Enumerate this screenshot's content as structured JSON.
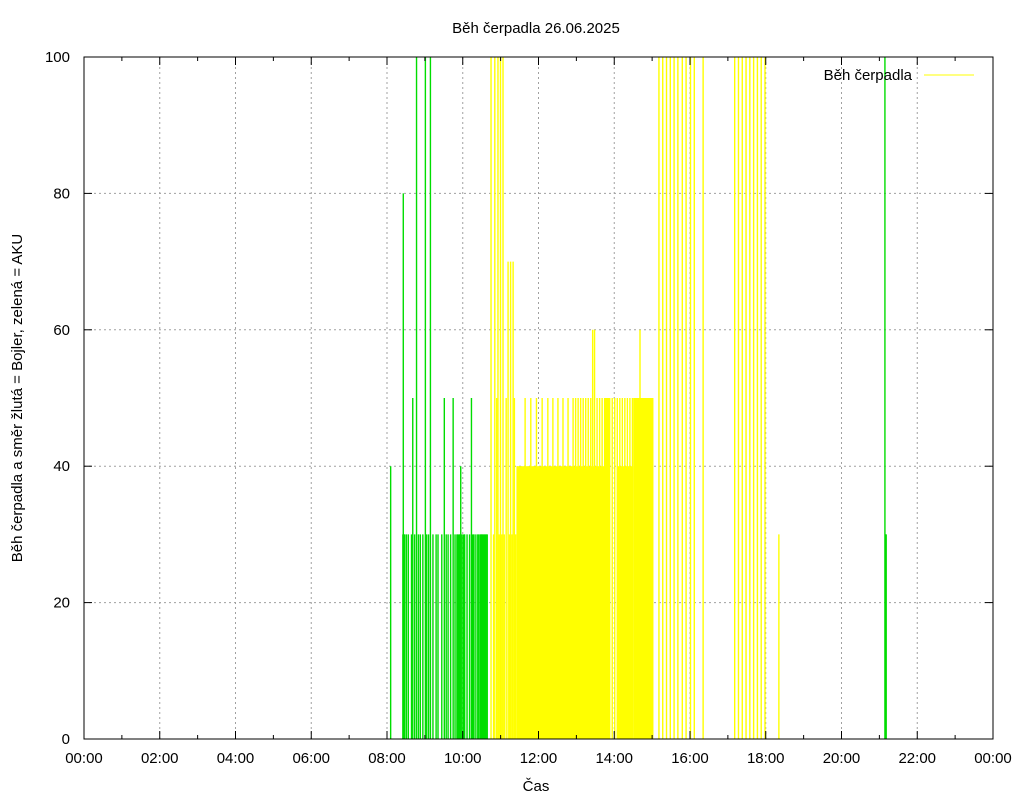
{
  "chart_data": {
    "type": "bar",
    "title": "Běh čerpadla 26.06.2025",
    "xlabel": "Čas",
    "ylabel": "Běh čerpadla a směr žlutá = Bojler, zelená = AKU",
    "xlim": [
      "00:00",
      "24:00"
    ],
    "ylim": [
      0,
      100
    ],
    "x_ticks": [
      "00:00",
      "02:00",
      "04:00",
      "06:00",
      "08:00",
      "10:00",
      "12:00",
      "14:00",
      "16:00",
      "18:00",
      "20:00",
      "22:00",
      "00:00"
    ],
    "y_ticks": [
      0,
      20,
      40,
      60,
      80,
      100
    ],
    "grid": true,
    "legend": {
      "position": "top-right",
      "entries": [
        "Běh čerpadla"
      ]
    },
    "colors": {
      "bojler": "#ffff00",
      "aku": "#00dd00"
    },
    "series": [
      {
        "color": "#00dd00",
        "impulses": [
          [
            "08:05",
            40
          ],
          [
            "08:12",
            0
          ],
          [
            "08:25",
            80
          ],
          [
            "08:27",
            30
          ],
          [
            "08:30",
            30
          ],
          [
            "08:33",
            30
          ],
          [
            "08:38",
            30
          ],
          [
            "08:40",
            50
          ],
          [
            "08:43",
            30
          ],
          [
            "08:46",
            100
          ],
          [
            "08:49",
            30
          ],
          [
            "08:52",
            30
          ],
          [
            "08:56",
            30
          ],
          [
            "09:00",
            100
          ],
          [
            "09:02",
            30
          ],
          [
            "09:05",
            30
          ],
          [
            "09:08",
            100
          ],
          [
            "09:12",
            30
          ],
          [
            "09:17",
            30
          ],
          [
            "09:20",
            30
          ],
          [
            "09:26",
            30
          ],
          [
            "09:30",
            50
          ],
          [
            "09:33",
            30
          ],
          [
            "09:36",
            30
          ],
          [
            "09:40",
            30
          ],
          [
            "09:44",
            50
          ],
          [
            "09:47",
            30
          ],
          [
            "09:50",
            30
          ],
          [
            "09:54",
            30
          ],
          [
            "09:56",
            40
          ],
          [
            "09:58",
            30
          ],
          [
            "10:02",
            30
          ],
          [
            "10:06",
            30
          ],
          [
            "10:10",
            30
          ],
          [
            "10:13",
            50
          ],
          [
            "10:17",
            30
          ],
          [
            "10:20",
            30
          ],
          [
            "10:23",
            30
          ],
          [
            "10:25",
            30
          ],
          [
            "10:28",
            30
          ],
          [
            "10:30",
            30
          ],
          [
            "10:33",
            30
          ],
          [
            "10:36",
            30
          ],
          [
            "10:38",
            30
          ],
          [
            "21:08",
            100
          ],
          [
            "21:09",
            30
          ],
          [
            "21:10",
            30
          ]
        ],
        "blocks": [
          {
            "start": "08:24",
            "end": "08:29",
            "value": 30
          },
          {
            "start": "09:51",
            "end": "09:55",
            "value": 30
          },
          {
            "start": "10:00",
            "end": "10:04",
            "value": 30
          },
          {
            "start": "10:14",
            "end": "10:18",
            "value": 30
          },
          {
            "start": "10:27",
            "end": "10:38",
            "value": 30
          },
          {
            "start": "21:09",
            "end": "21:10",
            "value": 30
          }
        ]
      },
      {
        "color": "#ffff00",
        "impulses": [
          [
            "10:44",
            100
          ],
          [
            "10:48",
            30
          ],
          [
            "10:50",
            100
          ],
          [
            "10:53",
            50
          ],
          [
            "10:55",
            100
          ],
          [
            "10:57",
            30
          ],
          [
            "10:59",
            100
          ],
          [
            "11:01",
            30
          ],
          [
            "11:03",
            100
          ],
          [
            "11:05",
            30
          ],
          [
            "11:08",
            50
          ],
          [
            "11:11",
            70
          ],
          [
            "11:13",
            30
          ],
          [
            "11:15",
            70
          ],
          [
            "11:17",
            30
          ],
          [
            "11:19",
            70
          ],
          [
            "11:21",
            50
          ],
          [
            "11:23",
            30
          ],
          [
            "11:26",
            40
          ],
          [
            "11:28",
            30
          ],
          [
            "11:32",
            40
          ],
          [
            "11:38",
            50
          ],
          [
            "11:43",
            40
          ],
          [
            "11:47",
            50
          ],
          [
            "11:52",
            40
          ],
          [
            "11:56",
            50
          ],
          [
            "12:00",
            40
          ],
          [
            "12:05",
            50
          ],
          [
            "12:10",
            40
          ],
          [
            "12:14",
            50
          ],
          [
            "12:18",
            40
          ],
          [
            "12:22",
            50
          ],
          [
            "12:26",
            40
          ],
          [
            "12:30",
            50
          ],
          [
            "12:34",
            40
          ],
          [
            "12:38",
            50
          ],
          [
            "12:42",
            40
          ],
          [
            "12:46",
            50
          ],
          [
            "12:50",
            40
          ],
          [
            "12:54",
            50
          ],
          [
            "12:58",
            50
          ],
          [
            "13:02",
            50
          ],
          [
            "13:06",
            50
          ],
          [
            "13:10",
            50
          ],
          [
            "13:14",
            50
          ],
          [
            "13:18",
            50
          ],
          [
            "13:22",
            50
          ],
          [
            "13:25",
            60
          ],
          [
            "13:28",
            60
          ],
          [
            "13:32",
            50
          ],
          [
            "13:36",
            50
          ],
          [
            "13:40",
            50
          ],
          [
            "13:44",
            50
          ],
          [
            "13:48",
            40
          ],
          [
            "13:52",
            50
          ],
          [
            "13:56",
            50
          ],
          [
            "14:00",
            50
          ],
          [
            "14:04",
            50
          ],
          [
            "14:08",
            50
          ],
          [
            "14:12",
            50
          ],
          [
            "14:16",
            50
          ],
          [
            "14:20",
            50
          ],
          [
            "14:24",
            50
          ],
          [
            "14:28",
            50
          ],
          [
            "14:32",
            50
          ],
          [
            "14:36",
            50
          ],
          [
            "14:40",
            60
          ],
          [
            "14:44",
            50
          ],
          [
            "14:48",
            50
          ],
          [
            "14:52",
            50
          ],
          [
            "14:56",
            50
          ],
          [
            "15:00",
            50
          ],
          [
            "15:10",
            100
          ],
          [
            "15:16",
            100
          ],
          [
            "15:22",
            100
          ],
          [
            "15:28",
            100
          ],
          [
            "15:34",
            100
          ],
          [
            "15:40",
            100
          ],
          [
            "15:47",
            100
          ],
          [
            "15:53",
            100
          ],
          [
            "16:00",
            100
          ],
          [
            "16:06",
            100
          ],
          [
            "16:20",
            100
          ],
          [
            "17:10",
            100
          ],
          [
            "17:16",
            100
          ],
          [
            "17:22",
            100
          ],
          [
            "17:28",
            100
          ],
          [
            "17:34",
            100
          ],
          [
            "17:40",
            100
          ],
          [
            "17:46",
            100
          ],
          [
            "17:52",
            100
          ],
          [
            "17:58",
            100
          ],
          [
            "18:20",
            30
          ]
        ],
        "blocks": [
          {
            "start": "11:25",
            "end": "12:00",
            "value": 40
          },
          {
            "start": "12:00",
            "end": "13:50",
            "value": 40
          },
          {
            "start": "13:45",
            "end": "13:52",
            "value": 50
          },
          {
            "start": "14:04",
            "end": "14:30",
            "value": 40
          },
          {
            "start": "14:30",
            "end": "15:02",
            "value": 50
          }
        ]
      }
    ]
  }
}
